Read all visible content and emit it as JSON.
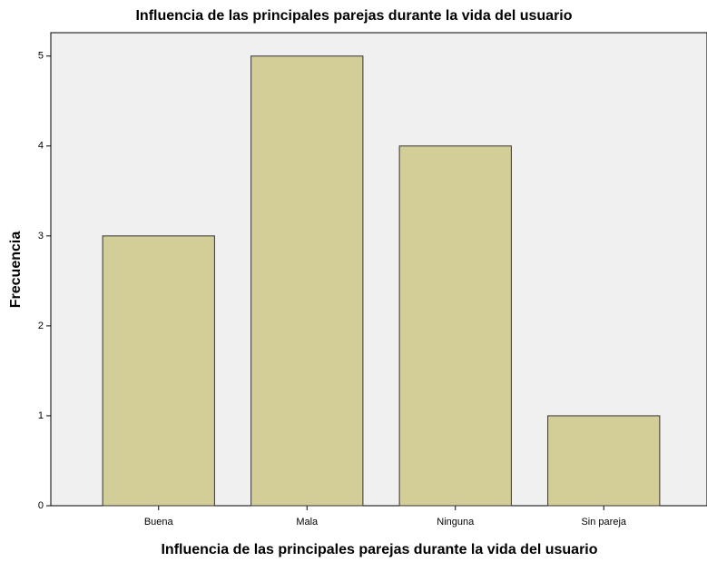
{
  "chart_data": {
    "type": "bar",
    "title": "Influencia de las principales parejas durante la vida del usuario",
    "x_label": "Influencia de las principales parejas durante la vida del usuario",
    "y_label": "Frecuencia",
    "categories": [
      "Buena",
      "Mala",
      "Ninguna",
      "Sin pareja"
    ],
    "values": [
      3,
      5,
      4,
      1
    ],
    "color": "#d3ce97",
    "ylim": [
      0,
      5.26
    ],
    "yticks": [
      0,
      1,
      2,
      3,
      4,
      5
    ],
    "grid": false
  }
}
